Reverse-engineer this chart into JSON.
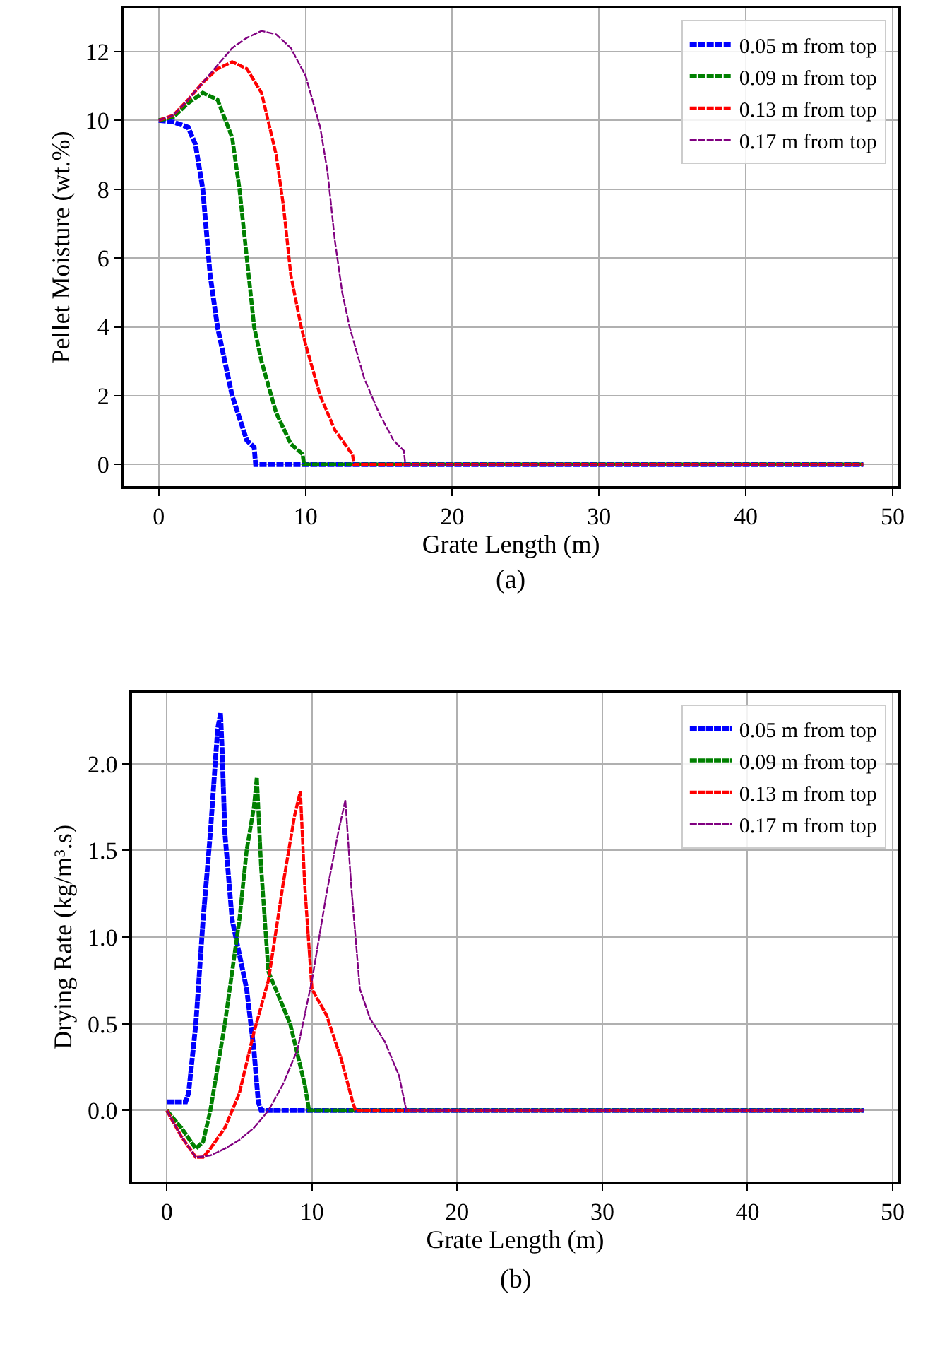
{
  "chart_data": [
    {
      "type": "line",
      "xlabel": "Grate Length (m)",
      "ylabel": "Pellet Moisture (wt.%)",
      "annotations": [
        "(a)"
      ],
      "xlim": [
        -2.4,
        50.4
      ],
      "ylim": [
        -0.63,
        13.25
      ],
      "xticks": [
        0,
        10,
        20,
        30,
        40,
        50
      ],
      "yticks": [
        0,
        2,
        4,
        6,
        8,
        10,
        12
      ],
      "grid": true,
      "legend": "top right",
      "line_style": "dashed",
      "marker": "none",
      "series": [
        {
          "name": "0.05 m from top",
          "color": "#0000ff",
          "x": [
            0,
            1,
            2,
            2.5,
            3,
            3.5,
            4,
            5,
            6,
            6.5,
            6.6,
            48
          ],
          "values": [
            10,
            9.95,
            9.8,
            9.3,
            8,
            5.5,
            4,
            2,
            0.7,
            0.5,
            0,
            0
          ]
        },
        {
          "name": "0.09 m from top",
          "color": "#008000",
          "x": [
            0,
            1,
            2,
            3,
            4,
            5,
            5.5,
            6,
            6.5,
            7,
            8,
            9,
            9.8,
            9.9,
            48
          ],
          "values": [
            10,
            10.1,
            10.5,
            10.8,
            10.6,
            9.5,
            8,
            6,
            4,
            3,
            1.5,
            0.6,
            0.3,
            0,
            0
          ]
        },
        {
          "name": "0.13 m from top",
          "color": "#ff0000",
          "x": [
            0,
            1,
            2,
            3,
            4,
            5,
            6,
            7,
            8,
            8.5,
            9,
            9.7,
            10,
            11,
            12,
            13,
            13.2,
            13.3,
            48
          ],
          "values": [
            10,
            10.15,
            10.6,
            11.1,
            11.5,
            11.7,
            11.5,
            10.8,
            9,
            7.5,
            5.5,
            4,
            3.5,
            2,
            1,
            0.4,
            0.3,
            0,
            0
          ]
        },
        {
          "name": "0.17 m from top",
          "color": "#800080",
          "x": [
            0,
            1,
            2,
            3,
            4,
            5,
            6,
            7,
            8,
            9,
            10,
            11,
            11.5,
            12,
            12.5,
            13,
            14,
            15,
            16,
            16.7,
            16.8,
            48
          ],
          "values": [
            10,
            10.15,
            10.6,
            11.1,
            11.6,
            12.1,
            12.4,
            12.6,
            12.5,
            12.1,
            11.3,
            9.8,
            8.5,
            6.5,
            5,
            4,
            2.5,
            1.5,
            0.7,
            0.4,
            0,
            0
          ]
        }
      ]
    },
    {
      "type": "line",
      "xlabel": "Grate Length (m)",
      "ylabel": "Drying Rate (kg/m³.s)",
      "annotations": [
        "(b)"
      ],
      "xlim": [
        -2.4,
        50.4
      ],
      "ylim": [
        -0.41,
        2.41
      ],
      "xticks": [
        0,
        10,
        20,
        30,
        40,
        50
      ],
      "yticks": [
        {
          "value": 0,
          "label": "0.0"
        },
        {
          "value": 0.5,
          "label": "0.5"
        },
        {
          "value": 1,
          "label": "1.0"
        },
        {
          "value": 1.5,
          "label": "1.5"
        },
        {
          "value": 2,
          "label": "2.0"
        }
      ],
      "grid": true,
      "legend": "top right",
      "line_style": "dashed",
      "marker": "none",
      "series": [
        {
          "name": "0.05 m from top",
          "color": "#0000ff",
          "x": [
            0,
            1.3,
            1.5,
            2,
            2.5,
            3,
            3.5,
            3.7,
            3.8,
            4,
            4.5,
            5,
            5.5,
            6,
            6.3,
            6.5,
            48
          ],
          "values": [
            0.05,
            0.05,
            0.1,
            0.5,
            1.1,
            1.6,
            2.2,
            2.29,
            2.1,
            1.6,
            1.1,
            0.9,
            0.7,
            0.35,
            0.05,
            0,
            0
          ]
        },
        {
          "name": "0.09 m from top",
          "color": "#008000",
          "x": [
            0,
            1,
            2,
            2.5,
            3,
            4,
            5,
            5.5,
            6,
            6.2,
            6.5,
            7,
            7.5,
            8.5,
            9.5,
            9.8,
            48
          ],
          "values": [
            0,
            -0.1,
            -0.22,
            -0.18,
            0,
            0.5,
            1.1,
            1.5,
            1.75,
            1.92,
            1.4,
            0.8,
            0.7,
            0.5,
            0.15,
            0,
            0
          ]
        },
        {
          "name": "0.13 m from top",
          "color": "#ff0000",
          "x": [
            0,
            1,
            2,
            2.5,
            3,
            4,
            5,
            6,
            7,
            8,
            8.8,
            9.2,
            9.5,
            10,
            11,
            12,
            12.8,
            13,
            48
          ],
          "values": [
            0,
            -0.15,
            -0.27,
            -0.27,
            -0.22,
            -0.1,
            0.1,
            0.45,
            0.75,
            1.3,
            1.7,
            1.84,
            1.3,
            0.7,
            0.55,
            0.3,
            0.05,
            0,
            0
          ]
        },
        {
          "name": "0.17 m from top",
          "color": "#800080",
          "x": [
            0,
            1,
            2,
            3,
            4,
            5,
            6,
            7,
            8,
            9,
            10,
            11,
            11.8,
            12.3,
            12.7,
            13.3,
            14,
            15,
            16,
            16.5,
            48
          ],
          "values": [
            0,
            -0.15,
            -0.27,
            -0.26,
            -0.22,
            -0.17,
            -0.1,
            0,
            0.15,
            0.35,
            0.75,
            1.25,
            1.6,
            1.79,
            1.3,
            0.7,
            0.53,
            0.4,
            0.2,
            0,
            0
          ]
        }
      ]
    }
  ]
}
